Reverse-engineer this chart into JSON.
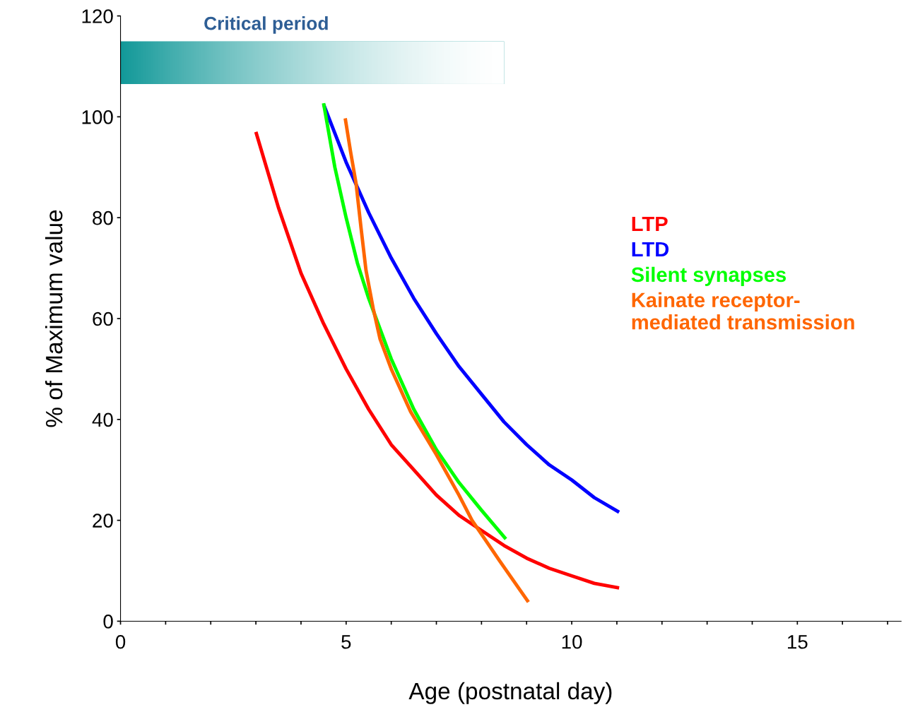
{
  "chart_data": {
    "type": "line",
    "xlabel": "Age (postnatal day)",
    "ylabel": "% of Maximum value",
    "xlim": [
      0,
      17.3
    ],
    "ylim": [
      0,
      120
    ],
    "xticks": [
      0,
      {
        "value": 1,
        "label": null
      },
      {
        "value": 2,
        "label": null
      },
      {
        "value": 3,
        "label": null
      },
      {
        "value": 4,
        "label": null
      },
      5,
      {
        "value": 6,
        "label": null
      },
      {
        "value": 7,
        "label": null
      },
      {
        "value": 8,
        "label": null
      },
      {
        "value": 9,
        "label": null
      },
      10,
      {
        "value": 11,
        "label": null
      },
      {
        "value": 12,
        "label": null
      },
      {
        "value": 13,
        "label": null
      },
      {
        "value": 14,
        "label": null
      },
      15,
      {
        "value": 16,
        "label": null
      },
      {
        "value": 17,
        "label": null
      }
    ],
    "yticks": [
      0,
      20,
      40,
      60,
      80,
      100,
      120
    ],
    "grid": false,
    "legend": "right",
    "marker": "none",
    "line_style": "solid",
    "bands": [
      {
        "axis": "x",
        "from": 0,
        "to": 8.5,
        "label": "Critical period",
        "color": "#139999"
      }
    ],
    "series": [
      {
        "name": "LTP",
        "color": "#ff0000",
        "x": [
          3,
          3.5,
          4,
          4.5,
          5,
          5.5,
          6,
          6.5,
          7,
          7.5,
          8,
          8.5,
          9,
          9.5,
          10,
          10.5,
          11.05
        ],
        "values": [
          97,
          82,
          69,
          59,
          50,
          42,
          35,
          30,
          25,
          21,
          18,
          15,
          12.5,
          10.5,
          9,
          7.5,
          6.6
        ]
      },
      {
        "name": "LTD",
        "color": "#0000ff",
        "x": [
          4.5,
          5,
          5.5,
          6,
          6.5,
          7,
          7.5,
          8,
          8.5,
          9,
          9.5,
          10,
          10.5,
          11.05
        ],
        "values": [
          102.5,
          91,
          81,
          72,
          64,
          57,
          50.5,
          45,
          39.5,
          35,
          31,
          28,
          24.5,
          21.6
        ]
      },
      {
        "name": "Silent synapses",
        "color": "#00ff00",
        "x": [
          4.5,
          4.75,
          5,
          5.25,
          5.5,
          5.75,
          6,
          6.5,
          7,
          7.5,
          8,
          8.54
        ],
        "values": [
          102.7,
          90,
          80,
          71,
          64,
          58,
          52,
          42,
          34,
          27.5,
          22,
          16.3
        ]
      },
      {
        "name": "Kainate receptor-\nmediated transmission",
        "color": "#ff6600",
        "x": [
          4.98,
          5.1,
          5.22,
          5.33,
          5.44,
          5.6,
          5.75,
          6,
          6.43,
          7,
          7.5,
          7.79,
          8.4,
          9.04
        ],
        "values": [
          99.7,
          93,
          86.8,
          78,
          69.6,
          62,
          56,
          50,
          41.5,
          33,
          25,
          20,
          12,
          3.8
        ]
      }
    ]
  }
}
